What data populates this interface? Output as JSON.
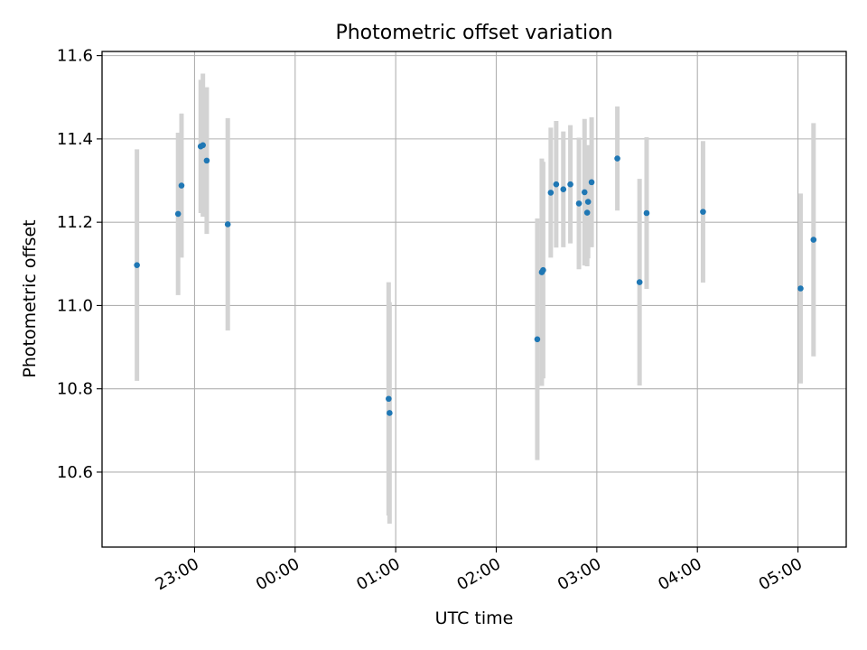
{
  "chart_data": {
    "type": "scatter",
    "title": "Photometric offset variation",
    "xlabel": "UTC time",
    "ylabel": "Photometric offset",
    "x_axis": "time",
    "x_unit": "hours (UTC); values >= 24 are after midnight",
    "xlim": [
      22.08,
      29.48
    ],
    "ylim": [
      10.42,
      11.61
    ],
    "x_ticks": [
      {
        "value": 23,
        "label": "23:00"
      },
      {
        "value": 24,
        "label": "00:00"
      },
      {
        "value": 25,
        "label": "01:00"
      },
      {
        "value": 26,
        "label": "02:00"
      },
      {
        "value": 27,
        "label": "03:00"
      },
      {
        "value": 28,
        "label": "04:00"
      },
      {
        "value": 29,
        "label": "05:00"
      }
    ],
    "y_ticks": [
      {
        "value": 10.6,
        "label": "10.6"
      },
      {
        "value": 10.8,
        "label": "10.8"
      },
      {
        "value": 11.0,
        "label": "11.0"
      },
      {
        "value": 11.2,
        "label": "11.2"
      },
      {
        "value": 11.4,
        "label": "11.4"
      },
      {
        "value": 11.6,
        "label": "11.6"
      }
    ],
    "grid": true,
    "marker_color": "#1f77b4",
    "errorbar_color": "#d3d3d3",
    "series": [
      {
        "points": [
          {
            "x": 22.427,
            "y": 11.097,
            "err": 0.278
          },
          {
            "x": 22.836,
            "y": 11.22,
            "err": 0.195
          },
          {
            "x": 22.87,
            "y": 11.288,
            "err": 0.173
          },
          {
            "x": 23.061,
            "y": 11.382,
            "err": 0.16
          },
          {
            "x": 23.083,
            "y": 11.385,
            "err": 0.172
          },
          {
            "x": 23.121,
            "y": 11.348,
            "err": 0.176
          },
          {
            "x": 23.33,
            "y": 11.195,
            "err": 0.255
          },
          {
            "x": 24.93,
            "y": 10.776,
            "err": 0.28
          },
          {
            "x": 24.939,
            "y": 10.742,
            "err": 0.266
          },
          {
            "x": 26.408,
            "y": 10.919,
            "err": 0.29
          },
          {
            "x": 26.453,
            "y": 11.08,
            "err": 0.273
          },
          {
            "x": 26.466,
            "y": 11.085,
            "err": 0.26
          },
          {
            "x": 26.542,
            "y": 11.271,
            "err": 0.156
          },
          {
            "x": 26.596,
            "y": 11.291,
            "err": 0.152
          },
          {
            "x": 26.667,
            "y": 11.279,
            "err": 0.139
          },
          {
            "x": 26.737,
            "y": 11.291,
            "err": 0.142
          },
          {
            "x": 26.822,
            "y": 11.245,
            "err": 0.158
          },
          {
            "x": 26.878,
            "y": 11.272,
            "err": 0.176
          },
          {
            "x": 26.904,
            "y": 11.223,
            "err": 0.129
          },
          {
            "x": 26.913,
            "y": 11.249,
            "err": 0.136
          },
          {
            "x": 26.948,
            "y": 11.296,
            "err": 0.156
          },
          {
            "x": 27.204,
            "y": 11.353,
            "err": 0.125
          },
          {
            "x": 27.425,
            "y": 11.056,
            "err": 0.248
          },
          {
            "x": 27.495,
            "y": 11.222,
            "err": 0.182
          },
          {
            "x": 28.056,
            "y": 11.225,
            "err": 0.17
          },
          {
            "x": 29.026,
            "y": 11.041,
            "err": 0.228
          },
          {
            "x": 29.155,
            "y": 11.158,
            "err": 0.28
          }
        ]
      }
    ]
  }
}
